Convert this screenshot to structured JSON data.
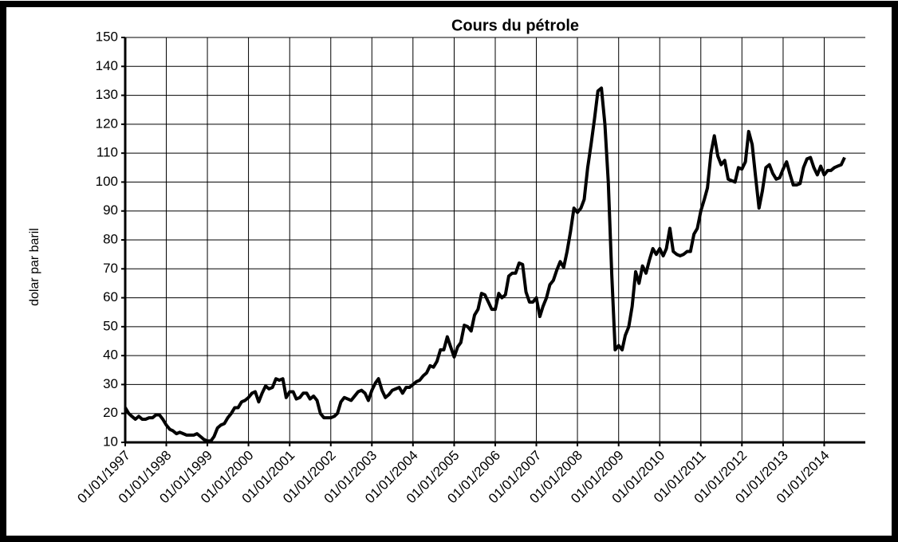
{
  "chart_data": {
    "type": "line",
    "title": "Cours du pétrole",
    "y_label": "dolar  par  baril",
    "x": [
      "1997-01-01",
      "1997-02-01",
      "1997-03-01",
      "1997-04-01",
      "1997-05-01",
      "1997-06-01",
      "1997-07-01",
      "1997-08-01",
      "1997-09-01",
      "1997-10-01",
      "1997-11-01",
      "1997-12-01",
      "1998-01-01",
      "1998-02-01",
      "1998-03-01",
      "1998-04-01",
      "1998-05-01",
      "1998-06-01",
      "1998-07-01",
      "1998-08-01",
      "1998-09-01",
      "1998-10-01",
      "1998-11-01",
      "1998-12-01",
      "1999-01-01",
      "1999-02-01",
      "1999-03-01",
      "1999-04-01",
      "1999-05-01",
      "1999-06-01",
      "1999-07-01",
      "1999-08-01",
      "1999-09-01",
      "1999-10-01",
      "1999-11-01",
      "1999-12-01",
      "2000-01-01",
      "2000-02-01",
      "2000-03-01",
      "2000-04-01",
      "2000-05-01",
      "2000-06-01",
      "2000-07-01",
      "2000-08-01",
      "2000-09-01",
      "2000-10-01",
      "2000-11-01",
      "2000-12-01",
      "2001-01-01",
      "2001-02-01",
      "2001-03-01",
      "2001-04-01",
      "2001-05-01",
      "2001-06-01",
      "2001-07-01",
      "2001-08-01",
      "2001-09-01",
      "2001-10-01",
      "2001-11-01",
      "2001-12-01",
      "2002-01-01",
      "2002-02-01",
      "2002-03-01",
      "2002-04-01",
      "2002-05-01",
      "2002-06-01",
      "2002-07-01",
      "2002-08-01",
      "2002-09-01",
      "2002-10-01",
      "2002-11-01",
      "2002-12-01",
      "2003-01-01",
      "2003-02-01",
      "2003-03-01",
      "2003-04-01",
      "2003-05-01",
      "2003-06-01",
      "2003-07-01",
      "2003-08-01",
      "2003-09-01",
      "2003-10-01",
      "2003-11-01",
      "2003-12-01",
      "2004-01-01",
      "2004-02-01",
      "2004-03-01",
      "2004-04-01",
      "2004-05-01",
      "2004-06-01",
      "2004-07-01",
      "2004-08-01",
      "2004-09-01",
      "2004-10-01",
      "2004-11-01",
      "2004-12-01",
      "2005-01-01",
      "2005-02-01",
      "2005-03-01",
      "2005-04-01",
      "2005-05-01",
      "2005-06-01",
      "2005-07-01",
      "2005-08-01",
      "2005-09-01",
      "2005-10-01",
      "2005-11-01",
      "2005-12-01",
      "2006-01-01",
      "2006-02-01",
      "2006-03-01",
      "2006-04-01",
      "2006-05-01",
      "2006-06-01",
      "2006-07-01",
      "2006-08-01",
      "2006-09-01",
      "2006-10-01",
      "2006-11-01",
      "2006-12-01",
      "2007-01-01",
      "2007-02-01",
      "2007-03-01",
      "2007-04-01",
      "2007-05-01",
      "2007-06-01",
      "2007-07-01",
      "2007-08-01",
      "2007-09-01",
      "2007-10-01",
      "2007-11-01",
      "2007-12-01",
      "2008-01-01",
      "2008-02-01",
      "2008-03-01",
      "2008-04-01",
      "2008-05-01",
      "2008-06-01",
      "2008-07-01",
      "2008-08-01",
      "2008-09-01",
      "2008-10-01",
      "2008-11-01",
      "2008-12-01",
      "2009-01-01",
      "2009-02-01",
      "2009-03-01",
      "2009-04-01",
      "2009-05-01",
      "2009-06-01",
      "2009-07-01",
      "2009-08-01",
      "2009-09-01",
      "2009-10-01",
      "2009-11-01",
      "2009-12-01",
      "2010-01-01",
      "2010-02-01",
      "2010-03-01",
      "2010-04-01",
      "2010-05-01",
      "2010-06-01",
      "2010-07-01",
      "2010-08-01",
      "2010-09-01",
      "2010-10-01",
      "2010-11-01",
      "2010-12-01",
      "2011-01-01",
      "2011-02-01",
      "2011-03-01",
      "2011-04-01",
      "2011-05-01",
      "2011-06-01",
      "2011-07-01",
      "2011-08-01",
      "2011-09-01",
      "2011-10-01",
      "2011-11-01",
      "2011-12-01",
      "2012-01-01",
      "2012-02-01",
      "2012-03-01",
      "2012-04-01",
      "2012-05-01",
      "2012-06-01",
      "2012-07-01",
      "2012-08-01",
      "2012-09-01",
      "2012-10-01",
      "2012-11-01",
      "2012-12-01",
      "2013-01-01",
      "2013-02-01",
      "2013-03-01",
      "2013-04-01",
      "2013-05-01",
      "2013-06-01",
      "2013-07-01",
      "2013-08-01",
      "2013-09-01",
      "2013-10-01",
      "2013-11-01",
      "2013-12-01",
      "2014-01-01",
      "2014-02-01",
      "2014-03-01",
      "2014-04-01",
      "2014-05-01",
      "2014-06-01",
      "2014-07-01"
    ],
    "series": [
      {
        "color": "#000000",
        "values": [
          22,
          20,
          19,
          18,
          19,
          18,
          18,
          18.5,
          18.5,
          19.5,
          19.5,
          18,
          16,
          14.5,
          14,
          13,
          13.5,
          13,
          12.5,
          12.5,
          12.5,
          13,
          12,
          11,
          10.5,
          10.5,
          12,
          15,
          16,
          16.5,
          18.5,
          20,
          22,
          22,
          24,
          24.5,
          25.5,
          27,
          27.5,
          24,
          27,
          29.5,
          28.5,
          29,
          32,
          31.5,
          32,
          25.5,
          27.5,
          27.5,
          25,
          25.5,
          27,
          27,
          25,
          26,
          24.5,
          20,
          18.5,
          18.5,
          18.5,
          19,
          20,
          24,
          25.5,
          25,
          24.5,
          26,
          27.5,
          28,
          27,
          24.5,
          28,
          30.5,
          32,
          28,
          25.5,
          26.5,
          28,
          28.5,
          29,
          27,
          29,
          29,
          30,
          31,
          31.5,
          33,
          34,
          36.5,
          36,
          38,
          42,
          42,
          46.5,
          43,
          39.5,
          43,
          44.5,
          50.5,
          50,
          48.5,
          54,
          56,
          61.5,
          61,
          58.5,
          56,
          56,
          61.5,
          60,
          61,
          67.5,
          68.5,
          68.5,
          72,
          71.5,
          62,
          58.5,
          58.5,
          60,
          53.5,
          57,
          60,
          64.5,
          66,
          69.5,
          72.5,
          70.5,
          76,
          83,
          91,
          89.5,
          91,
          94,
          105,
          113,
          122,
          131.5,
          132.5,
          120,
          100,
          68,
          42,
          43.5,
          42,
          47,
          50,
          57,
          69,
          65,
          71,
          68.5,
          73,
          77,
          75,
          77,
          74.5,
          77,
          84,
          76,
          75,
          74.5,
          75,
          76,
          76,
          82,
          84,
          90,
          94,
          98,
          110,
          116,
          109,
          106,
          107.5,
          101,
          100.5,
          100,
          105,
          104.5,
          107,
          117.5,
          113,
          102,
          91,
          97,
          105,
          106,
          103,
          101,
          101.5,
          104.5,
          107,
          103,
          99,
          99,
          99.5,
          105,
          108,
          108.5,
          105,
          102.5,
          105.5,
          102.5,
          104,
          104,
          105,
          105.5,
          106,
          108.5
        ]
      }
    ],
    "xlim": [
      "1997-01-01",
      "2015-01-01"
    ],
    "xticks": [
      {
        "value": "1997-01-01",
        "label": "01/01/1997"
      },
      {
        "value": "1998-01-01",
        "label": "01/01/1998"
      },
      {
        "value": "1999-01-01",
        "label": "01/01/1999"
      },
      {
        "value": "2000-01-01",
        "label": "01/01/2000"
      },
      {
        "value": "2001-01-01",
        "label": "01/01/2001"
      },
      {
        "value": "2002-01-01",
        "label": "01/01/2002"
      },
      {
        "value": "2003-01-01",
        "label": "01/01/2003"
      },
      {
        "value": "2004-01-01",
        "label": "01/01/2004"
      },
      {
        "value": "2005-01-01",
        "label": "01/01/2005"
      },
      {
        "value": "2006-01-01",
        "label": "01/01/2006"
      },
      {
        "value": "2007-01-01",
        "label": "01/01/2007"
      },
      {
        "value": "2008-01-01",
        "label": "01/01/2008"
      },
      {
        "value": "2009-01-01",
        "label": "01/01/2009"
      },
      {
        "value": "2010-01-01",
        "label": "01/01/2010"
      },
      {
        "value": "2011-01-01",
        "label": "01/01/2011"
      },
      {
        "value": "2012-01-01",
        "label": "01/01/2012"
      },
      {
        "value": "2013-01-01",
        "label": "01/01/2013"
      },
      {
        "value": "2014-01-01",
        "label": "01/01/2014"
      }
    ],
    "ylim": [
      10,
      150
    ],
    "yticks": [
      10,
      20,
      30,
      40,
      50,
      60,
      70,
      80,
      90,
      100,
      110,
      120,
      130,
      140,
      150
    ],
    "grid": true
  }
}
